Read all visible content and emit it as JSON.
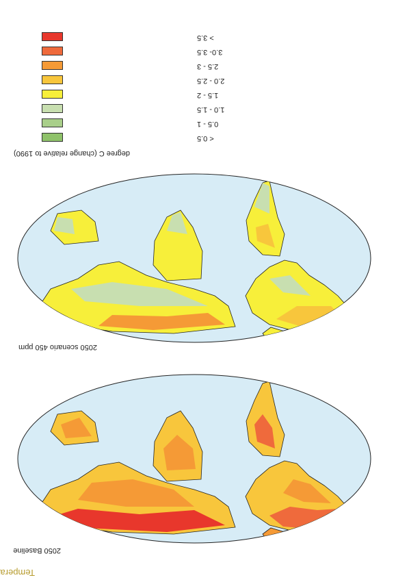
{
  "title": "Temperature",
  "maps": [
    {
      "id": "baseline",
      "caption": "2050 Baseline"
    },
    {
      "id": "scenario",
      "caption": "2050 scenario 450 ppm"
    }
  ],
  "unit_caption": "degree C (change relative to 1990)",
  "legend": [
    {
      "label": "> 3.5",
      "color": "#e8372c"
    },
    {
      "label": "3.0- 3.5",
      "color": "#ef6a3c"
    },
    {
      "label": "2.5 - 3",
      "color": "#f59a36"
    },
    {
      "label": "2.0 - 2.5",
      "color": "#f8c63c"
    },
    {
      "label": "1.5 - 2",
      "color": "#f7ef3a"
    },
    {
      "label": "1.0 - 1.5",
      "color": "#c8dfb0"
    },
    {
      "label": "0.5 - 1",
      "color": "#a9cf8a"
    },
    {
      "label": "< 0.5",
      "color": "#8fc26a"
    }
  ],
  "colors": {
    "ocean": "#d7ecf6",
    "outline": "#222222",
    "title": "#b59a2b"
  }
}
